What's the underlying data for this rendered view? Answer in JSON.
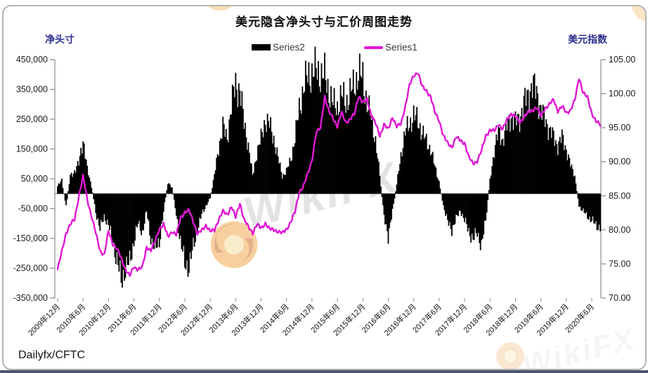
{
  "card": {
    "title": "美元隐含净头寸与汇价周图走势",
    "left_axis_title": "净头寸",
    "right_axis_title": "美元指数",
    "source": "Dailyfx/CFTC",
    "watermark_text": "WikiFX"
  },
  "legend": [
    {
      "label": "Series2",
      "swatch": "bar",
      "color": "#000000"
    },
    {
      "label": "Series1",
      "swatch": "line",
      "color": "#e216d6"
    }
  ],
  "colors": {
    "bar": "#000000",
    "line": "#e216d6",
    "axis_line": "#8a8a8a",
    "axis_title": "#2e2e8f",
    "tick_text": "#1a1a1a",
    "watermark": "#e3e3e3",
    "card_border": "#b3b3b3",
    "bottom_bar": "#4d5670"
  },
  "chart_data": {
    "type": "combo",
    "title": "美元隐含净头寸与汇价周图走势",
    "source": "Dailyfx/CFTC",
    "legend": [
      "Series2",
      "Series1"
    ],
    "legend_position": "top-center",
    "grid": false,
    "left_axis": {
      "title": "净头寸",
      "min": -350000,
      "max": 450000,
      "step": 100000,
      "tick_labels": [
        "450,000",
        "350,000",
        "250,000",
        "150,000",
        "50,000",
        "-50,000",
        "-150,000",
        "-250,000",
        "-350,000"
      ]
    },
    "right_axis": {
      "title": "美元指数",
      "min": 70,
      "max": 105,
      "step": 5,
      "tick_labels": [
        "105.00",
        "100.00",
        "95.00",
        "90.00",
        "85.00",
        "80.00",
        "75.00",
        "70.00"
      ]
    },
    "x_tick_labels": [
      "2009年12月",
      "2010年6月",
      "2010年12月",
      "2011年6月",
      "2011年12月",
      "2012年6月",
      "2012年12月",
      "2013年6月",
      "2013年12月",
      "2014年6月",
      "2014年12月",
      "2015年6月",
      "2015年12月",
      "2016年6月",
      "2016年12月",
      "2017年6月",
      "2017年12月",
      "2018年6月",
      "2018年12月",
      "2019年6月",
      "2019年12月",
      "2020年6月"
    ],
    "x_range": {
      "start": "2009-12",
      "end": "2020-08",
      "freq": "monthly",
      "count": 129,
      "note": "weekly series in original, values read off chart at monthly resolution"
    },
    "series": [
      {
        "name": "Series2",
        "type": "bar",
        "axis": "left",
        "color": "#000000",
        "values": [
          25000,
          45000,
          -45000,
          60000,
          75000,
          100000,
          185000,
          80000,
          25000,
          -60000,
          -120000,
          -75000,
          -105000,
          -160000,
          -225000,
          -290000,
          -255000,
          -230000,
          -160000,
          -100000,
          -130000,
          -60000,
          -150000,
          -190000,
          -160000,
          -60000,
          35000,
          20000,
          -70000,
          -160000,
          -235000,
          -245000,
          -180000,
          -120000,
          -70000,
          -40000,
          -15000,
          60000,
          155000,
          225000,
          185000,
          295000,
          370000,
          345000,
          240000,
          160000,
          60000,
          135000,
          185000,
          250000,
          230000,
          185000,
          120000,
          60000,
          75000,
          115000,
          185000,
          285000,
          355000,
          395000,
          405000,
          415000,
          400000,
          395000,
          345000,
          300000,
          290000,
          330000,
          305000,
          335000,
          365000,
          405000,
          385000,
          305000,
          250000,
          180000,
          60000,
          -80000,
          -140000,
          -60000,
          30000,
          130000,
          205000,
          235000,
          260000,
          245000,
          205000,
          175000,
          150000,
          90000,
          40000,
          -40000,
          -95000,
          -120000,
          -85000,
          -55000,
          -90000,
          -125000,
          -155000,
          -130000,
          -175000,
          -90000,
          45000,
          145000,
          205000,
          180000,
          225000,
          260000,
          240000,
          255000,
          300000,
          335000,
          360000,
          345000,
          280000,
          250000,
          215000,
          190000,
          160000,
          190000,
          150000,
          95000,
          60000,
          -40000,
          -60000,
          -75000,
          -90000,
          -105000,
          -115000
        ]
      },
      {
        "name": "Series1",
        "type": "line",
        "axis": "right",
        "color": "#e216d6",
        "values": [
          74.2,
          76.8,
          79.6,
          80.8,
          81.5,
          85.0,
          87.8,
          84.5,
          82.0,
          79.5,
          77.0,
          76.3,
          79.8,
          78.0,
          77.2,
          75.8,
          74.3,
          73.2,
          74.6,
          74.2,
          74.5,
          77.5,
          77.0,
          78.3,
          80.2,
          80.8,
          79.0,
          79.8,
          79.2,
          81.8,
          82.6,
          82.8,
          81.3,
          79.4,
          79.9,
          80.7,
          79.8,
          79.9,
          81.6,
          82.7,
          82.2,
          83.5,
          81.8,
          83.9,
          81.5,
          80.4,
          79.6,
          80.8,
          80.2,
          81.0,
          80.1,
          80.0,
          79.8,
          79.5,
          80.1,
          81.2,
          82.6,
          85.6,
          86.4,
          88.2,
          90.3,
          94.2,
          95.0,
          99.6,
          97.3,
          96.4,
          95.2,
          97.2,
          95.8,
          96.2,
          97.0,
          99.7,
          98.6,
          99.2,
          96.9,
          95.6,
          93.8,
          95.5,
          94.7,
          96.6,
          95.2,
          95.5,
          98.2,
          101.2,
          102.6,
          103.2,
          101.0,
          100.4,
          99.6,
          97.2,
          96.1,
          93.8,
          92.7,
          92.2,
          93.6,
          93.1,
          92.8,
          90.6,
          89.8,
          90.1,
          91.6,
          93.9,
          94.6,
          94.5,
          95.6,
          94.7,
          96.2,
          97.1,
          96.6,
          95.8,
          96.6,
          97.2,
          97.6,
          98.0,
          96.7,
          97.9,
          98.4,
          99.1,
          97.5,
          98.1,
          97.2,
          97.6,
          99.0,
          102.4,
          100.1,
          99.4,
          97.2,
          95.9,
          95.4
        ]
      }
    ]
  }
}
